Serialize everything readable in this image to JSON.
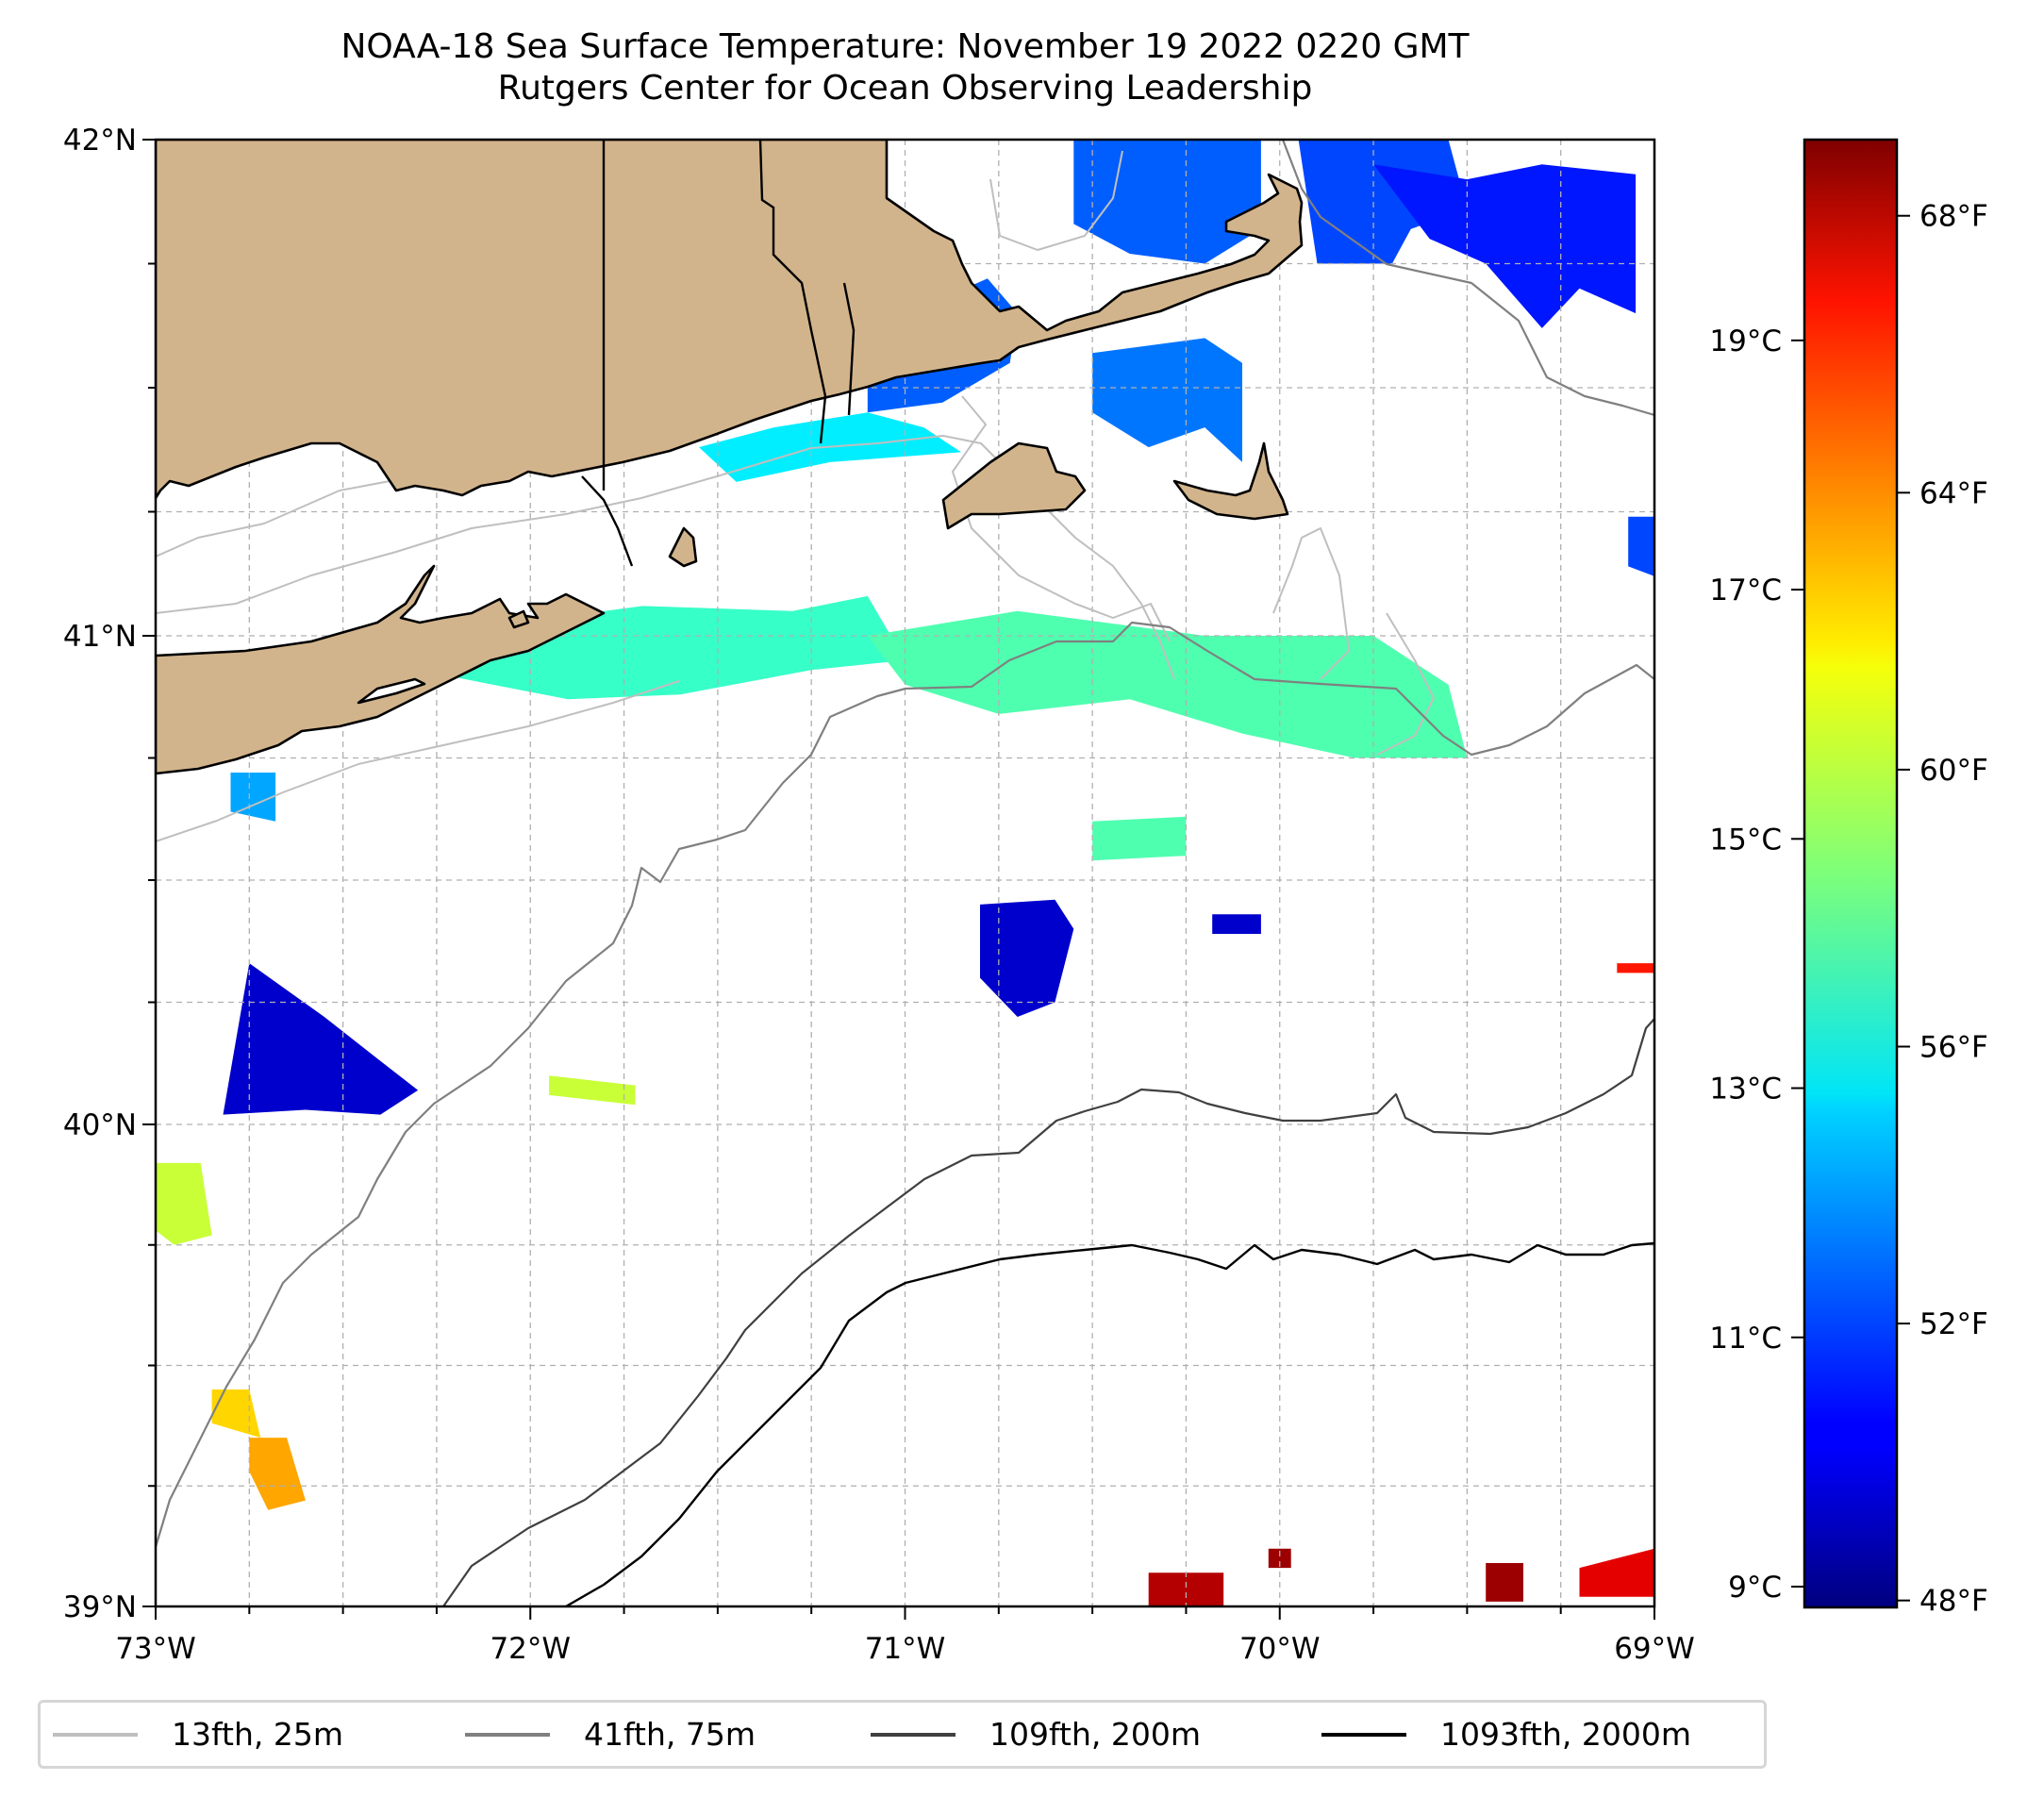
{
  "title": {
    "line1": "NOAA-18 Sea Surface Temperature: November 19 2022 0220 GMT",
    "line2": "Rutgers Center for Ocean Observing Leadership"
  },
  "chart_data": {
    "type": "heatmap",
    "title": "NOAA-18 Sea Surface Temperature: November 19 2022 0220 GMT",
    "subtitle": "Rutgers Center for Ocean Observing Leadership",
    "projection": "map",
    "xlim": [
      -73,
      -69
    ],
    "ylim": [
      39,
      42
    ],
    "grid": true,
    "grid_step_deg": 0.25,
    "x_ticks": [
      {
        "value": -73,
        "label": "73°W"
      },
      {
        "value": -72,
        "label": "72°W"
      },
      {
        "value": -71,
        "label": "71°W"
      },
      {
        "value": -70,
        "label": "70°W"
      },
      {
        "value": -69,
        "label": "69°W"
      }
    ],
    "y_ticks": [
      {
        "value": 42,
        "label": "42°N"
      },
      {
        "value": 41,
        "label": "41°N"
      },
      {
        "value": 40,
        "label": "40°N"
      },
      {
        "value": 39,
        "label": "39°N"
      }
    ],
    "colorbar": {
      "cmap": "jet",
      "vmin_f": 47.9,
      "vmax_f": 69.1,
      "ticks_f": [
        {
          "value": 48,
          "label": "48°F"
        },
        {
          "value": 52,
          "label": "52°F"
        },
        {
          "value": 56,
          "label": "56°F"
        },
        {
          "value": 60,
          "label": "60°F"
        },
        {
          "value": 64,
          "label": "64°F"
        },
        {
          "value": 68,
          "label": "68°F"
        }
      ],
      "ticks_c": [
        {
          "value": 9,
          "label": "9°C"
        },
        {
          "value": 11,
          "label": "11°C"
        },
        {
          "value": 13,
          "label": "13°C"
        },
        {
          "value": 15,
          "label": "15°C"
        },
        {
          "value": 17,
          "label": "17°C"
        },
        {
          "value": 19,
          "label": "19°C"
        }
      ]
    },
    "land_color": "#d2b48c",
    "legend_position": "bottom",
    "legend": [
      {
        "label": "13fth, 25m",
        "color": "#bfbfbf"
      },
      {
        "label": "41fth, 75m",
        "color": "#808080"
      },
      {
        "label": "109fth, 200m",
        "color": "#404040"
      },
      {
        "label": "1093fth, 2000m",
        "color": "#000000"
      }
    ],
    "sst_regions_f": [
      {
        "name": "cape-cod-bay",
        "temp": 52.5,
        "pts": [
          [
            -70.55,
            42
          ],
          [
            -70.05,
            42
          ],
          [
            -70.05,
            41.82
          ],
          [
            -70.2,
            41.75
          ],
          [
            -70.4,
            41.77
          ],
          [
            -70.55,
            41.83
          ]
        ]
      },
      {
        "name": "mass-bay-east",
        "temp": 52,
        "pts": [
          [
            -69.95,
            42
          ],
          [
            -69.55,
            42
          ],
          [
            -69.5,
            41.86
          ],
          [
            -69.65,
            41.82
          ],
          [
            -69.7,
            41.75
          ],
          [
            -69.9,
            41.75
          ]
        ]
      },
      {
        "name": "gulf-of-maine-se",
        "temp": 51,
        "pts": [
          [
            -69.75,
            41.95
          ],
          [
            -69.5,
            41.92
          ],
          [
            -69.3,
            41.95
          ],
          [
            -69.05,
            41.93
          ],
          [
            -69.05,
            41.65
          ],
          [
            -69.2,
            41.7
          ],
          [
            -69.3,
            41.62
          ],
          [
            -69.45,
            41.75
          ],
          [
            -69.6,
            41.8
          ]
        ]
      },
      {
        "name": "buzzards-bay",
        "temp": 52.5,
        "pts": [
          [
            -71.1,
            41.62
          ],
          [
            -70.9,
            41.68
          ],
          [
            -70.78,
            41.72
          ],
          [
            -70.7,
            41.65
          ],
          [
            -70.72,
            41.55
          ],
          [
            -70.9,
            41.47
          ],
          [
            -71.1,
            41.45
          ]
        ]
      },
      {
        "name": "nantucket-sound",
        "temp": 53,
        "pts": [
          [
            -70.5,
            41.57
          ],
          [
            -70.2,
            41.6
          ],
          [
            -70.1,
            41.55
          ],
          [
            -70.1,
            41.35
          ],
          [
            -70.2,
            41.42
          ],
          [
            -70.35,
            41.38
          ],
          [
            -70.5,
            41.45
          ]
        ]
      },
      {
        "name": "ri-sound",
        "temp": 55.5,
        "pts": [
          [
            -71.55,
            41.38
          ],
          [
            -71.35,
            41.42
          ],
          [
            -71.1,
            41.45
          ],
          [
            -70.95,
            41.42
          ],
          [
            -70.85,
            41.37
          ],
          [
            -71.2,
            41.35
          ],
          [
            -71.45,
            41.31
          ]
        ]
      },
      {
        "name": "block-island-shelf",
        "temp": 57,
        "pts": [
          [
            -72.3,
            40.93
          ],
          [
            -72.0,
            41.03
          ],
          [
            -71.7,
            41.06
          ],
          [
            -71.3,
            41.05
          ],
          [
            -71.1,
            41.08
          ],
          [
            -71.0,
            40.95
          ],
          [
            -71.25,
            40.93
          ],
          [
            -71.6,
            40.88
          ],
          [
            -71.9,
            40.87
          ]
        ]
      },
      {
        "name": "southern-new-england-shelf",
        "temp": 57.5,
        "pts": [
          [
            -71.1,
            41.0
          ],
          [
            -70.7,
            41.05
          ],
          [
            -70.2,
            41.0
          ],
          [
            -69.75,
            41.0
          ],
          [
            -69.55,
            40.9
          ],
          [
            -69.5,
            40.75
          ],
          [
            -69.8,
            40.75
          ],
          [
            -70.1,
            40.8
          ],
          [
            -70.4,
            40.87
          ],
          [
            -70.75,
            40.84
          ],
          [
            -71.0,
            40.9
          ]
        ]
      },
      {
        "name": "shelf-patch-70-5",
        "temp": 57.5,
        "pts": [
          [
            -70.5,
            40.62
          ],
          [
            -70.25,
            40.63
          ],
          [
            -70.25,
            40.55
          ],
          [
            -70.5,
            40.54
          ]
        ]
      },
      {
        "name": "ny-bight-patch",
        "temp": 54,
        "pts": [
          [
            -72.8,
            40.72
          ],
          [
            -72.68,
            40.72
          ],
          [
            -72.68,
            40.62
          ],
          [
            -72.8,
            40.64
          ]
        ]
      },
      {
        "name": "shelf-break-west",
        "temp": 49.5,
        "pts": [
          [
            -72.75,
            40.33
          ],
          [
            -72.55,
            40.22
          ],
          [
            -72.4,
            40.13
          ],
          [
            -72.3,
            40.07
          ],
          [
            -72.4,
            40.02
          ],
          [
            -72.6,
            40.03
          ],
          [
            -72.82,
            40.02
          ]
        ]
      },
      {
        "name": "shelf-break-mid",
        "temp": 49.5,
        "pts": [
          [
            -70.8,
            40.45
          ],
          [
            -70.6,
            40.46
          ],
          [
            -70.55,
            40.4
          ],
          [
            -70.6,
            40.25
          ],
          [
            -70.7,
            40.22
          ],
          [
            -70.8,
            40.3
          ]
        ]
      },
      {
        "name": "nj-slope-warm",
        "temp": 60,
        "pts": [
          [
            -73,
            39.92
          ],
          [
            -72.88,
            39.92
          ],
          [
            -72.85,
            39.77
          ],
          [
            -72.95,
            39.75
          ],
          [
            -73,
            39.78
          ]
        ]
      },
      {
        "name": "slope-warm-1",
        "temp": 63,
        "pts": [
          [
            -72.75,
            39.35
          ],
          [
            -72.65,
            39.35
          ],
          [
            -72.6,
            39.22
          ],
          [
            -72.7,
            39.2
          ],
          [
            -72.75,
            39.28
          ]
        ]
      },
      {
        "name": "slope-warm-2",
        "temp": 62,
        "pts": [
          [
            -72.85,
            39.45
          ],
          [
            -72.75,
            39.45
          ],
          [
            -72.72,
            39.35
          ],
          [
            -72.85,
            39.38
          ]
        ]
      },
      {
        "name": "gulf-stream-eddy-1",
        "temp": 68,
        "pts": [
          [
            -70.35,
            39.07
          ],
          [
            -70.15,
            39.07
          ],
          [
            -70.15,
            39.0
          ],
          [
            -70.35,
            39.0
          ]
        ]
      },
      {
        "name": "gulf-stream-eddy-2",
        "temp": 68.5,
        "pts": [
          [
            -69.45,
            39.09
          ],
          [
            -69.35,
            39.09
          ],
          [
            -69.35,
            39.01
          ],
          [
            -69.45,
            39.01
          ]
        ]
      },
      {
        "name": "gulf-stream-eddy-3",
        "temp": 67,
        "pts": [
          [
            -69.2,
            39.08
          ],
          [
            -69.0,
            39.12
          ],
          [
            -69.0,
            39.02
          ],
          [
            -69.2,
            39.02
          ]
        ]
      },
      {
        "name": "gulf-stream-eddy-4",
        "temp": 68.5,
        "pts": [
          [
            -70.03,
            39.12
          ],
          [
            -69.97,
            39.12
          ],
          [
            -69.97,
            39.08
          ],
          [
            -70.03,
            39.08
          ]
        ]
      },
      {
        "name": "shelf-break-east",
        "temp": 49.5,
        "pts": [
          [
            -70.18,
            40.43
          ],
          [
            -70.05,
            40.43
          ],
          [
            -70.05,
            40.39
          ],
          [
            -70.18,
            40.39
          ]
        ]
      },
      {
        "name": "shelf-patch-72",
        "temp": 60,
        "pts": [
          [
            -71.95,
            40.1
          ],
          [
            -71.72,
            40.08
          ],
          [
            -71.72,
            40.04
          ],
          [
            -71.95,
            40.06
          ]
        ]
      },
      {
        "name": "east-edge-warm",
        "temp": 66,
        "pts": [
          [
            -69.1,
            40.33
          ],
          [
            -69,
            40.33
          ],
          [
            -69,
            40.31
          ],
          [
            -69.1,
            40.31
          ]
        ]
      },
      {
        "name": "east-edge-cold",
        "temp": 52,
        "pts": [
          [
            -69.07,
            41.24
          ],
          [
            -69,
            41.24
          ],
          [
            -69,
            41.12
          ],
          [
            -69.07,
            41.14
          ]
        ]
      }
    ]
  }
}
